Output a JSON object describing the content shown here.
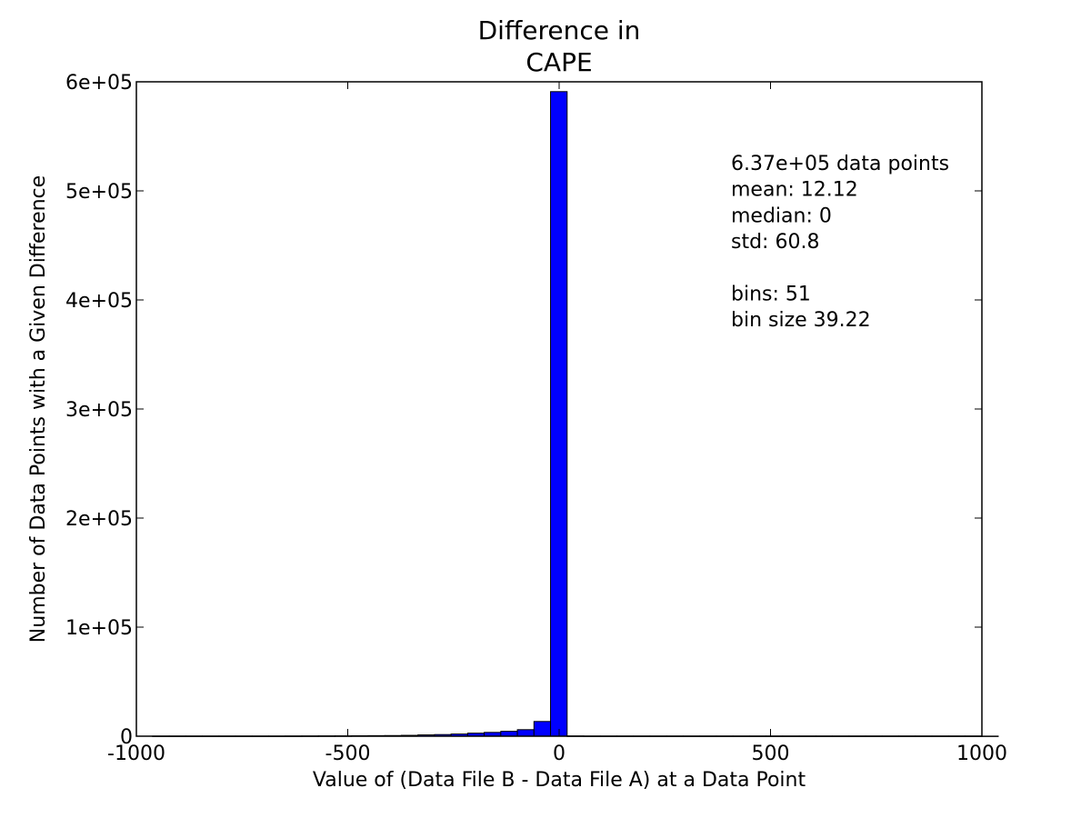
{
  "chart_data": {
    "type": "bar",
    "title_lines": [
      "Difference in",
      "CAPE"
    ],
    "xlabel": "Value of (Data File B - Data File A) at a Data Point",
    "ylabel": "Number of Data Points with a Given Difference",
    "xlim": [
      -1000,
      1000
    ],
    "ylim": [
      0,
      600000
    ],
    "x_ticks": [
      {
        "value": -1000,
        "label": "-1000"
      },
      {
        "value": -500,
        "label": "-500"
      },
      {
        "value": 0,
        "label": "0"
      },
      {
        "value": 500,
        "label": "500"
      },
      {
        "value": 1000,
        "label": "1000"
      }
    ],
    "y_ticks": [
      {
        "value": 0,
        "label": "0"
      },
      {
        "value": 100000,
        "label": "1e+05"
      },
      {
        "value": 200000,
        "label": "2e+05"
      },
      {
        "value": 300000,
        "label": "3e+05"
      },
      {
        "value": 400000,
        "label": "4e+05"
      },
      {
        "value": 500000,
        "label": "5e+05"
      },
      {
        "value": 600000,
        "label": "6e+05"
      }
    ],
    "bin_start": -961.6,
    "bin_width": 39.22,
    "values": [
      100,
      100,
      100,
      100,
      100,
      100,
      100,
      100,
      150,
      200,
      250,
      300,
      400,
      500,
      600,
      800,
      1200,
      1500,
      2000,
      2800,
      3500,
      4500,
      6000,
      13500,
      591000,
      200,
      100,
      100,
      100,
      100,
      100,
      100,
      100,
      100,
      100,
      100,
      100,
      100,
      100,
      100,
      100,
      100,
      100,
      100,
      100,
      100,
      100,
      100,
      100,
      100,
      100
    ],
    "bar_color": "#0000ff",
    "edge_color": "#000000",
    "grid": false,
    "annotation_lines": [
      "6.37e+05 data points",
      "mean: 12.12",
      "median: 0",
      "std: 60.8",
      "",
      "bins: 51",
      "bin size 39.22"
    ]
  }
}
